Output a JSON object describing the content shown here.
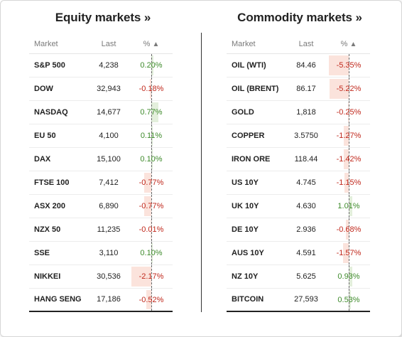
{
  "equity": {
    "title": "Equity markets »",
    "headers": {
      "market": "Market",
      "last": "Last",
      "pct": "%",
      "sort_icon": "▲"
    },
    "rows": [
      {
        "market": "S&P 500",
        "last": "4,238",
        "pct": "0.20%",
        "value": 0.2
      },
      {
        "market": "DOW",
        "last": "32,943",
        "pct": "-0.18%",
        "value": -0.18
      },
      {
        "market": "NASDAQ",
        "last": "14,677",
        "pct": "0.77%",
        "value": 0.77
      },
      {
        "market": "EU 50",
        "last": "4,100",
        "pct": "0.11%",
        "value": 0.11
      },
      {
        "market": "DAX",
        "last": "15,100",
        "pct": "0.10%",
        "value": 0.1
      },
      {
        "market": "FTSE 100",
        "last": "7,412",
        "pct": "-0.77%",
        "value": -0.77
      },
      {
        "market": "ASX 200",
        "last": "6,890",
        "pct": "-0.77%",
        "value": -0.77
      },
      {
        "market": "NZX 50",
        "last": "11,235",
        "pct": "-0.01%",
        "value": -0.01
      },
      {
        "market": "SSE",
        "last": "3,110",
        "pct": "0.10%",
        "value": 0.1
      },
      {
        "market": "NIKKEI",
        "last": "30,536",
        "pct": "-2.17%",
        "value": -2.17
      },
      {
        "market": "HANG SENG",
        "last": "17,186",
        "pct": "-0.52%",
        "value": -0.52
      }
    ]
  },
  "commodity": {
    "title": "Commodity markets »",
    "headers": {
      "market": "Market",
      "last": "Last",
      "pct": "%",
      "sort_icon": "▲"
    },
    "rows": [
      {
        "market": "OIL (WTI)",
        "last": "84.46",
        "pct": "-5.35%",
        "value": -5.35
      },
      {
        "market": "OIL (BRENT)",
        "last": "86.17",
        "pct": "-5.22%",
        "value": -5.22
      },
      {
        "market": "GOLD",
        "last": "1,818",
        "pct": "-0.25%",
        "value": -0.25
      },
      {
        "market": "COPPER",
        "last": "3.5750",
        "pct": "-1.27%",
        "value": -1.27
      },
      {
        "market": "IRON ORE",
        "last": "118.44",
        "pct": "-1.42%",
        "value": -1.42
      },
      {
        "market": "US 10Y",
        "last": "4.745",
        "pct": "-1.15%",
        "value": -1.15
      },
      {
        "market": "UK 10Y",
        "last": "4.630",
        "pct": "1.01%",
        "value": 1.01
      },
      {
        "market": "DE 10Y",
        "last": "2.936",
        "pct": "-0.68%",
        "value": -0.68
      },
      {
        "market": "AUS 10Y",
        "last": "4.591",
        "pct": "-1.57%",
        "value": -1.57
      },
      {
        "market": "NZ 10Y",
        "last": "5.625",
        "pct": "0.93%",
        "value": 0.93
      },
      {
        "market": "BITCOIN",
        "last": "27,593",
        "pct": "0.53%",
        "value": 0.53
      }
    ]
  },
  "colors": {
    "positive_text": "#3d8a2a",
    "negative_text": "#c0281c",
    "positive_bar": "#e3efdc",
    "negative_bar": "#fbe3dc"
  }
}
